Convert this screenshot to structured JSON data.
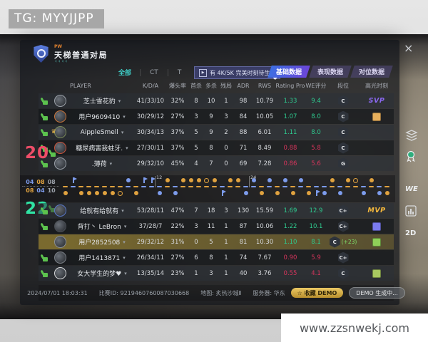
{
  "overlay": {
    "tg": "TG: MYYJJPP",
    "site": "www.zzsnwekj.com"
  },
  "header": {
    "brand": "PW",
    "title": "天梯普通对局",
    "deco": "‹‹‹‹",
    "close": "×"
  },
  "filters": {
    "all": "全部",
    "ct": "CT",
    "t": "T",
    "play": "▶",
    "notice": "有 4K/5K 完美时刻待生成"
  },
  "tabs": [
    {
      "label": "基础数据",
      "active": true
    },
    {
      "label": "表现数据",
      "active": false
    },
    {
      "label": "对位数据",
      "active": false
    }
  ],
  "columns": [
    "PLAYER",
    "K/D/A",
    "爆头率",
    "首杀",
    "多杀",
    "残局",
    "ADR",
    "RWS",
    "Rating Pro",
    "WE评分",
    "段位",
    "高光时刻"
  ],
  "colors": {
    "sides": {
      "T": "#e0a23f",
      "CT": "#7d9cec",
      "OT": "#9aa0a8"
    },
    "good": "#2ec98e",
    "bad": "#d6345c",
    "svp": "#8a68f0",
    "mvp": "#f2b63c"
  },
  "team1": {
    "score": "20",
    "halves": [
      {
        "v": "04",
        "side": "CT"
      },
      {
        "v": "08",
        "side": "T"
      },
      {
        "v": "08",
        "side": "OT"
      }
    ],
    "players": [
      {
        "name": "芝士雪花豹",
        "ring": "#9aa0a8",
        "kda": "41/33/10",
        "hs": "32%",
        "fk": "8",
        "mk": "10",
        "cl": "1",
        "adr": "98",
        "rws": "10.79",
        "rating": "1.33",
        "we": "9.4",
        "good": true,
        "badge": "C",
        "hl": {
          "type": "text",
          "text": "SVP",
          "color": "#8a68f0"
        }
      },
      {
        "name": "用户9609410",
        "ring": "#c8743a",
        "kda": "30/29/12",
        "hs": "27%",
        "fk": "3",
        "mk": "9",
        "cl": "3",
        "adr": "84",
        "rws": "10.05",
        "rating": "1.07",
        "we": "8.0",
        "good": true,
        "badge": "C",
        "hl": {
          "type": "chip",
          "color": "#e8b05c"
        }
      },
      {
        "name": "AippleSmell",
        "crown": true,
        "ring": "#7a8a5a",
        "kda": "30/34/13",
        "hs": "37%",
        "fk": "5",
        "mk": "9",
        "cl": "2",
        "adr": "88",
        "rws": "6.01",
        "rating": "1.11",
        "we": "8.0",
        "good": true,
        "badge": "C",
        "hl": null
      },
      {
        "name": "糖尿病害我蛀牙.",
        "ring": "#c8523a",
        "kda": "27/30/11",
        "hs": "37%",
        "fk": "5",
        "mk": "8",
        "cl": "0",
        "adr": "71",
        "rws": "8.49",
        "rating": "0.88",
        "we": "5.8",
        "good": false,
        "badge": "C",
        "hl": null
      },
      {
        "name": ".薄荷",
        "ring": "#9aa0a8",
        "kda": "29/32/10",
        "hs": "45%",
        "fk": "4",
        "mk": "7",
        "cl": "0",
        "adr": "69",
        "rws": "7.28",
        "rating": "0.86",
        "we": "5.6",
        "good": false,
        "badge": "G",
        "hl": null
      }
    ]
  },
  "team2": {
    "score": "22",
    "halves": [
      {
        "v": "08",
        "side": "T"
      },
      {
        "v": "04",
        "side": "CT"
      },
      {
        "v": "10",
        "side": "OT"
      }
    ],
    "players": [
      {
        "name": "给就有给就有",
        "ring": "#5a78c8",
        "kda": "53/28/11",
        "hs": "47%",
        "fk": "7",
        "mk": "18",
        "cl": "3",
        "adr": "130",
        "rws": "15.59",
        "rating": "1.69",
        "we": "12.9",
        "good": true,
        "badge": "C+",
        "hl": {
          "type": "text",
          "text": "MVP",
          "color": "#f2b63c"
        }
      },
      {
        "name": "背打丶 LeBron",
        "ring": "#4a4e54",
        "kda": "37/28/7",
        "hs": "22%",
        "fk": "3",
        "mk": "11",
        "cl": "1",
        "adr": "87",
        "rws": "10.06",
        "rating": "1.22",
        "we": "10.1",
        "good": true,
        "badge": "C+",
        "hl": {
          "type": "chip",
          "color": "#7b7bf0"
        }
      },
      {
        "name": "用户2852508",
        "self": true,
        "ring": "#8a8f96",
        "kda": "29/32/12",
        "hs": "31%",
        "fk": "0",
        "mk": "5",
        "cl": "1",
        "adr": "81",
        "rws": "10.30",
        "rating": "1.10",
        "we": "8.1",
        "good": true,
        "badge": "C",
        "bonus": "(+23)",
        "hl": {
          "type": "chip",
          "color": "#8fd058"
        }
      },
      {
        "name": "用户1413871",
        "ring": "#7a7f86",
        "kda": "26/34/11",
        "hs": "27%",
        "fk": "6",
        "mk": "8",
        "cl": "1",
        "adr": "74",
        "rws": "7.67",
        "rating": "0.90",
        "we": "5.9",
        "good": false,
        "badge": "C+",
        "hl": null
      },
      {
        "name": "女大学生的梦♥",
        "ring": "#d8dadc",
        "kda": "13/35/14",
        "hs": "23%",
        "fk": "1",
        "mk": "3",
        "cl": "1",
        "adr": "40",
        "rws": "3.76",
        "rating": "0.55",
        "we": "4.1",
        "good": false,
        "badge": "C",
        "hl": {
          "type": "chip",
          "color": "#a8c860"
        }
      }
    ]
  },
  "rounds": [
    {
      "w": 2,
      "s": "T",
      "i": "skull"
    },
    {
      "w": 1,
      "s": "CT",
      "i": "defuse"
    },
    {
      "w": 2,
      "s": "T",
      "i": "skull"
    },
    {
      "w": 2,
      "s": "T",
      "i": "skull"
    },
    {
      "w": 2,
      "s": "T",
      "i": "skull"
    },
    {
      "w": 2,
      "s": "T",
      "i": "skull"
    },
    {
      "w": 2,
      "s": "T",
      "i": "skull"
    },
    {
      "w": 2,
      "s": "T",
      "i": "bomb"
    },
    {
      "w": 1,
      "s": "CT",
      "i": "skull"
    },
    {
      "w": 2,
      "s": "T",
      "i": "skull"
    },
    {
      "w": 1,
      "s": "CT",
      "i": "defuse"
    },
    {
      "w": 1,
      "s": "CT",
      "i": "defuse"
    },
    {
      "w": 2,
      "s": "CT",
      "i": "skull"
    },
    {
      "w": 1,
      "s": "T",
      "i": "skull"
    },
    {
      "w": 2,
      "s": "CT",
      "i": "skull"
    },
    {
      "w": 1,
      "s": "T",
      "i": "skull"
    },
    {
      "w": 1,
      "s": "T",
      "i": "skull"
    },
    {
      "w": 1,
      "s": "T",
      "i": "skull"
    },
    {
      "w": 1,
      "s": "T",
      "i": "bomb"
    },
    {
      "w": 1,
      "s": "T",
      "i": "skull"
    },
    {
      "w": 2,
      "s": "CT",
      "i": "defuse"
    },
    {
      "w": 1,
      "s": "T",
      "i": "skull"
    },
    {
      "w": 1,
      "s": "T",
      "i": "skull"
    },
    {
      "w": 2,
      "s": "CT",
      "i": "skull"
    },
    {
      "w": 1,
      "s": "CT",
      "i": "skull"
    },
    {
      "w": 2,
      "s": "T",
      "i": "skull"
    },
    {
      "w": 1,
      "s": "CT",
      "i": "skull"
    },
    {
      "w": 2,
      "s": "T",
      "i": "skull"
    },
    {
      "w": 1,
      "s": "CT",
      "i": "skull"
    },
    {
      "w": 2,
      "s": "T",
      "i": "skull"
    },
    {
      "w": 1,
      "s": "CT",
      "i": "skull"
    },
    {
      "w": 2,
      "s": "T",
      "i": "skull"
    },
    {
      "w": 2,
      "s": "CT",
      "i": "defuse"
    },
    {
      "w": 2,
      "s": "CT",
      "i": "skull"
    },
    {
      "w": 1,
      "s": "T",
      "i": "skull"
    },
    {
      "w": 2,
      "s": "CT",
      "i": "skull"
    },
    {
      "w": 1,
      "s": "T",
      "i": "skull"
    },
    {
      "w": 1,
      "s": "T",
      "i": "bomb"
    },
    {
      "w": 2,
      "s": "CT",
      "i": "skull"
    },
    {
      "w": 1,
      "s": "T",
      "i": "skull"
    },
    {
      "w": 2,
      "s": "CT",
      "i": "skull"
    },
    {
      "w": 2,
      "s": "T",
      "i": "skull"
    }
  ],
  "markers": [
    {
      "at": 12,
      "label": "12"
    },
    {
      "at": 24,
      "label": "24"
    }
  ],
  "footer": {
    "time": "2024/07/01 18:03:31",
    "match": "比赛ID: 9219460760087030668",
    "map": "地图: 炙热沙城Ⅱ",
    "server": "服务器: 华东",
    "fav": "☆ 收藏 DEMO",
    "demo": "DEMO 生成中..."
  },
  "side": {
    "we": "WE",
    "viewer": "2D"
  }
}
